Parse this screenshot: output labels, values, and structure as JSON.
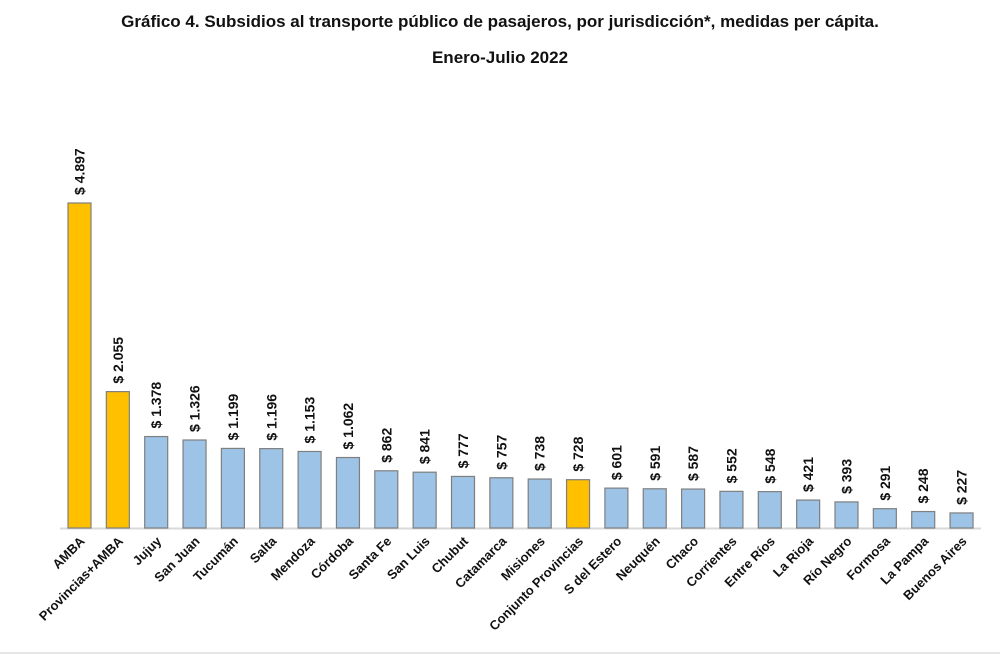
{
  "chart_data": {
    "type": "bar",
    "title": "Gráfico 4. Subsidios al transporte público de pasajeros, por jurisdicción*, medidas per cápita.",
    "subtitle": "Enero-Julio 2022",
    "xlabel": "",
    "ylabel": "",
    "ylim": [
      0,
      4897
    ],
    "grid": false,
    "legend": "none",
    "categories": [
      "AMBA",
      "Provincias+AMBA",
      "Jujuy",
      "San Juan",
      "Tucumán",
      "Salta",
      "Mendoza",
      "Córdoba",
      "Santa Fe",
      "San Luis",
      "Chubut",
      "Catamarca",
      "Misiones",
      "Conjunto Provincias",
      "S del Estero",
      "Neuquén",
      "Chaco",
      "Corrientes",
      "Entre Ríos",
      "La Rioja",
      "Río Negro",
      "Formosa",
      "La Pampa",
      "Buenos Aires"
    ],
    "values": [
      4897,
      2055,
      1378,
      1326,
      1199,
      1196,
      1153,
      1062,
      862,
      841,
      777,
      757,
      738,
      728,
      601,
      591,
      587,
      552,
      548,
      421,
      393,
      291,
      248,
      227
    ],
    "data_labels": [
      "$ 4.897",
      "$ 2.055",
      "$ 1.378",
      "$ 1.326",
      "$ 1.199",
      "$ 1.196",
      "$ 1.153",
      "$ 1.062",
      "$ 862",
      "$ 841",
      "$ 777",
      "$ 757",
      "$ 738",
      "$ 728",
      "$ 601",
      "$ 591",
      "$ 587",
      "$ 552",
      "$ 548",
      "$ 421",
      "$ 393",
      "$ 291",
      "$ 248",
      "$ 227"
    ],
    "highlighted": [
      "AMBA",
      "Provincias+AMBA",
      "Conjunto Provincias"
    ],
    "colors": {
      "default": "#9dc3e6",
      "highlight": "#ffc000",
      "border": "#7f7f7f",
      "axis": "#d9d9d9"
    }
  }
}
